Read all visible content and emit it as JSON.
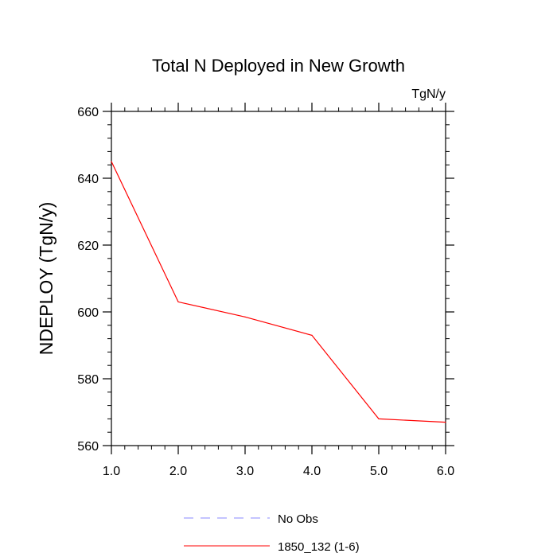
{
  "chart_data": {
    "type": "line",
    "title": "Total N Deployed in New Growth",
    "units_label": "TgN/y",
    "ylabel": "NDEPLOY  (TgN/y)",
    "xlabel": "",
    "xlim": [
      1.0,
      6.0
    ],
    "ylim": [
      560,
      660
    ],
    "x_ticks": [
      1.0,
      2.0,
      3.0,
      4.0,
      5.0,
      6.0
    ],
    "x_tick_labels": [
      "1.0",
      "2.0",
      "3.0",
      "4.0",
      "5.0",
      "6.0"
    ],
    "y_ticks": [
      560,
      580,
      600,
      620,
      640,
      660
    ],
    "y_tick_labels": [
      "560",
      "580",
      "600",
      "620",
      "640",
      "660"
    ],
    "grid": false,
    "legend_position": "bottom",
    "series": [
      {
        "name": "1850_132 (1-6)",
        "color": "#ff0000",
        "style": "solid",
        "x": [
          1.0,
          2.0,
          3.0,
          4.0,
          5.0,
          6.0
        ],
        "values": [
          645,
          603,
          598.5,
          593,
          568,
          567
        ]
      }
    ],
    "legend": [
      {
        "label": "No Obs",
        "color": "#8888ff",
        "style": "dashed"
      },
      {
        "label": "1850_132 (1-6)",
        "color": "#ff0000",
        "style": "solid"
      }
    ]
  }
}
